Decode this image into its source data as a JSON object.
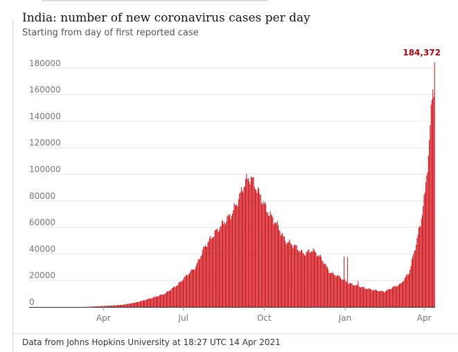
{
  "header": {
    "title": "India: number of new coronavirus cases per day",
    "subtitle": "Starting from day of first reported case"
  },
  "footer": {
    "source": "Data from Johns Hopkins University at 18:27 UTC 14 Apr 2021"
  },
  "colors": {
    "bar": "#cc0a11",
    "peak_label": "#ab0613",
    "grid": "#e6e6e6",
    "axis_text": "#767676"
  },
  "chart_data": {
    "type": "bar",
    "title": "India: number of new coronavirus cases per day",
    "subtitle": "Starting from day of first reported case",
    "xlabel": "",
    "ylabel": "",
    "ylim": [
      0,
      184372
    ],
    "y_ticks": [
      "180000",
      "160000",
      "140000",
      "120000",
      "100000",
      "80000",
      "60000",
      "40000",
      "20000",
      "0"
    ],
    "y_tick_values": [
      180000,
      160000,
      140000,
      120000,
      100000,
      80000,
      60000,
      40000,
      20000,
      0
    ],
    "x_ticks": [
      "Apr",
      "Jul",
      "Oct",
      "Jan",
      "Apr"
    ],
    "x_tick_dates": [
      "2020-04-01",
      "2020-07-01",
      "2020-10-01",
      "2021-01-01",
      "2021-04-01"
    ],
    "x_range": [
      "2020-01-30",
      "2021-04-13"
    ],
    "grid": true,
    "peak_label": "184,372",
    "series": [
      {
        "name": "",
        "frequency": "daily",
        "anchors": [
          [
            "2020-01-30",
            0
          ],
          [
            "2020-03-10",
            0
          ],
          [
            "2020-03-25",
            500
          ],
          [
            "2020-04-10",
            1000
          ],
          [
            "2020-04-25",
            1800
          ],
          [
            "2020-05-10",
            3700
          ],
          [
            "2020-05-25",
            6500
          ],
          [
            "2020-06-10",
            10000
          ],
          [
            "2020-06-25",
            17000
          ],
          [
            "2020-07-05",
            24000
          ],
          [
            "2020-07-15",
            30000
          ],
          [
            "2020-07-25",
            45000
          ],
          [
            "2020-08-05",
            55000
          ],
          [
            "2020-08-15",
            63000
          ],
          [
            "2020-08-25",
            70000
          ],
          [
            "2020-09-01",
            80000
          ],
          [
            "2020-09-10",
            95000
          ],
          [
            "2020-09-16",
            97800
          ],
          [
            "2020-09-25",
            86000
          ],
          [
            "2020-10-05",
            72000
          ],
          [
            "2020-10-15",
            63000
          ],
          [
            "2020-10-25",
            50000
          ],
          [
            "2020-11-05",
            46000
          ],
          [
            "2020-11-15",
            40000
          ],
          [
            "2020-11-25",
            43000
          ],
          [
            "2020-12-05",
            37000
          ],
          [
            "2020-12-15",
            26000
          ],
          [
            "2020-12-25",
            23000
          ],
          [
            "2021-01-05",
            18000
          ],
          [
            "2021-01-15",
            16000
          ],
          [
            "2021-01-25",
            14000
          ],
          [
            "2021-02-05",
            12500
          ],
          [
            "2021-02-15",
            11500
          ],
          [
            "2021-02-25",
            15000
          ],
          [
            "2021-03-05",
            17000
          ],
          [
            "2021-03-15",
            26000
          ],
          [
            "2021-03-22",
            45000
          ],
          [
            "2021-03-28",
            63000
          ],
          [
            "2021-04-02",
            85000
          ],
          [
            "2021-04-06",
            115000
          ],
          [
            "2021-04-09",
            145000
          ],
          [
            "2021-04-11",
            168000
          ],
          [
            "2021-04-12",
            161000
          ],
          [
            "2021-04-13",
            184372
          ]
        ],
        "spikes": [
          [
            "2020-12-31",
            38000
          ],
          [
            "2021-01-04",
            37500
          ],
          [
            "2021-01-16",
            19500
          ]
        ]
      }
    ]
  }
}
